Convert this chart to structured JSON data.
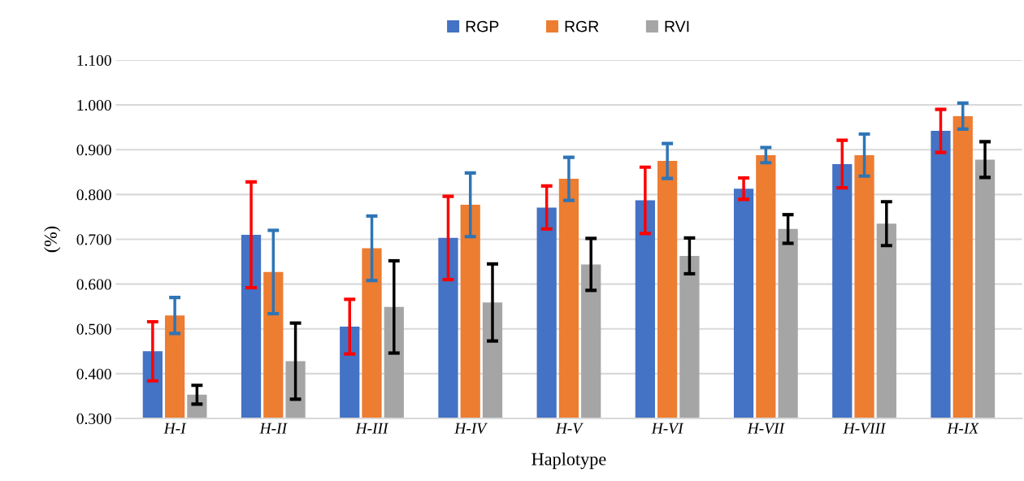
{
  "chart_data": {
    "type": "bar",
    "xlabel": "Haplotype",
    "ylabel": "(%)",
    "categories": [
      "H-I",
      "H-II",
      "H-III",
      "H-IV",
      "H-V",
      "H-VI",
      "H-VII",
      "H-VIII",
      "H-IX"
    ],
    "series": [
      {
        "name": "RGP",
        "color": "#4472c4",
        "values": [
          0.45,
          0.71,
          0.505,
          0.703,
          0.771,
          0.787,
          0.813,
          0.868,
          0.942
        ],
        "errors": [
          0.066,
          0.118,
          0.061,
          0.093,
          0.048,
          0.074,
          0.024,
          0.053,
          0.048
        ]
      },
      {
        "name": "RGR",
        "color": "#ed7d31",
        "values": [
          0.53,
          0.627,
          0.68,
          0.777,
          0.835,
          0.875,
          0.888,
          0.888,
          0.975
        ],
        "errors": [
          0.04,
          0.093,
          0.072,
          0.071,
          0.048,
          0.039,
          0.017,
          0.047,
          0.029
        ]
      },
      {
        "name": "RVI",
        "color": "#a5a5a5",
        "values": [
          0.353,
          0.428,
          0.549,
          0.559,
          0.644,
          0.663,
          0.723,
          0.735,
          0.878
        ],
        "errors": [
          0.021,
          0.085,
          0.103,
          0.086,
          0.058,
          0.04,
          0.032,
          0.049,
          0.04
        ]
      }
    ],
    "ylim": [
      0.3,
      1.1
    ],
    "yticks": [
      {
        "value": 0.3,
        "label": "0.300"
      },
      {
        "value": 0.4,
        "label": "0.400"
      },
      {
        "value": 0.5,
        "label": "0.500"
      },
      {
        "value": 0.6,
        "label": "0.600"
      },
      {
        "value": 0.7,
        "label": "0.700"
      },
      {
        "value": 0.8,
        "label": "0.800"
      },
      {
        "value": 0.9,
        "label": "0.900"
      },
      {
        "value": 1.0,
        "label": "1.000"
      },
      {
        "value": 1.1,
        "label": "1.100"
      }
    ],
    "grid": "y",
    "legend": "top"
  }
}
